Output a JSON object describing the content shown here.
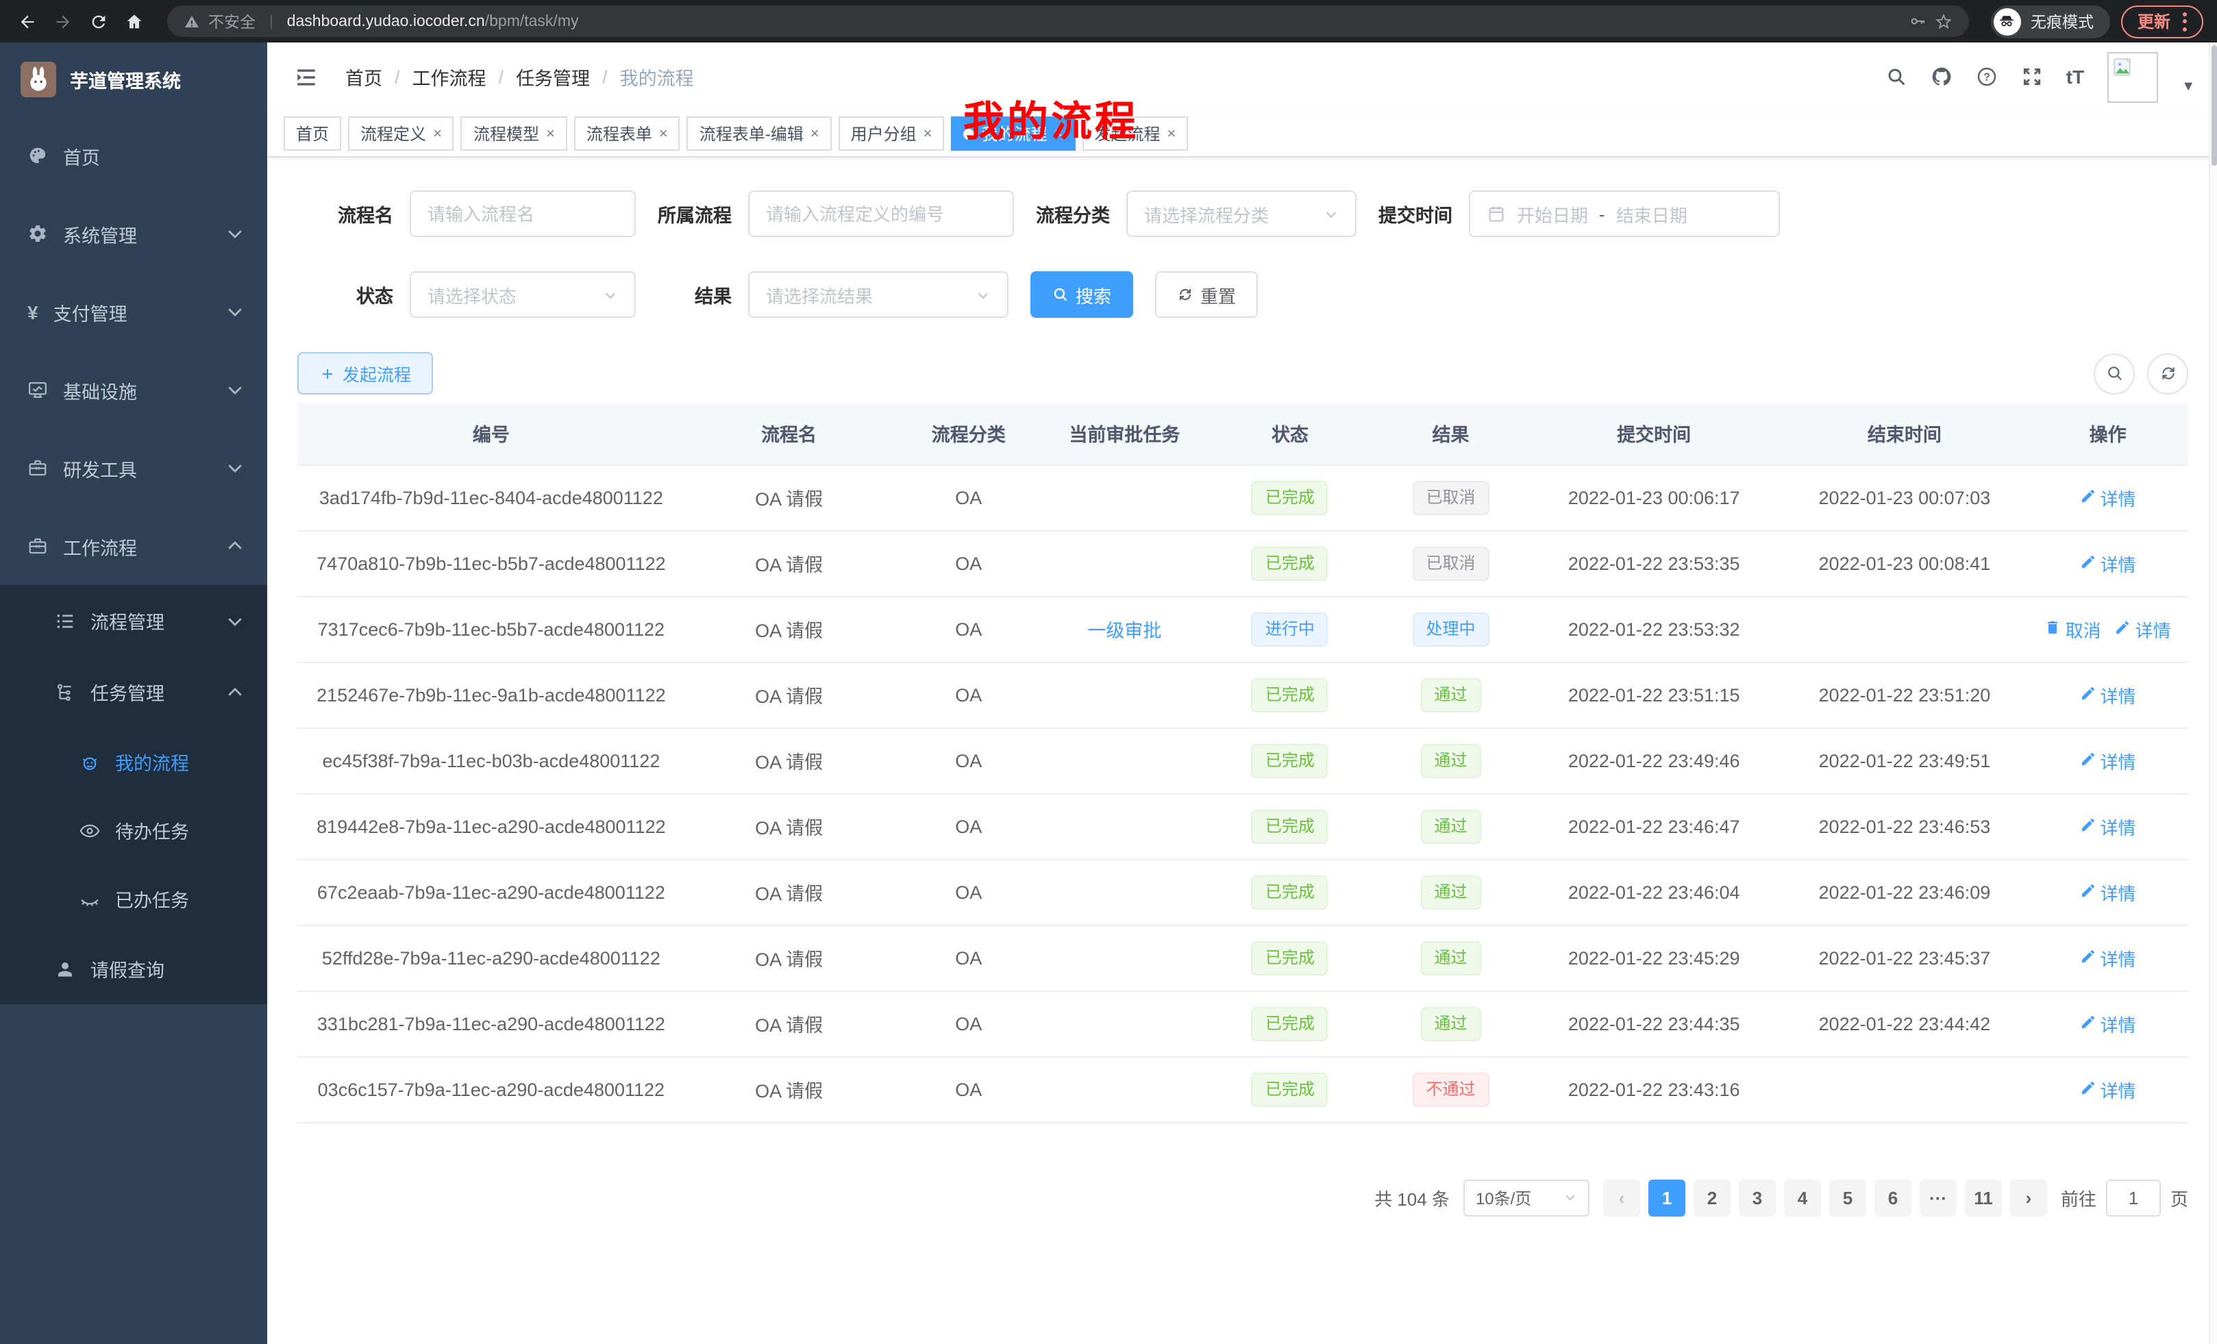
{
  "colors": {
    "accent": "#409eff",
    "sidebar_bg": "#304156",
    "submenu_bg": "#1f2d3d",
    "chrome_bg": "#202124",
    "success": "#67c23a",
    "info": "#909399",
    "danger": "#f56c6c",
    "annotation_red": "#ff0000"
  },
  "browser": {
    "security_label": "不安全",
    "address_divider": "|",
    "url_host": "dashboard.yudao.iocoder.cn",
    "url_path": "/bpm/task/my",
    "incognito_label": "无痕模式",
    "update_label": "更新"
  },
  "sidebar": {
    "app_title": "芋道管理系统",
    "menu": [
      {
        "label": "首页",
        "icon": "dashboard-icon"
      },
      {
        "label": "系统管理",
        "icon": "gear-icon",
        "chevron": "down"
      },
      {
        "label": "支付管理",
        "icon": "yen-icon",
        "chevron": "down"
      },
      {
        "label": "基础设施",
        "icon": "monitor-icon",
        "chevron": "down"
      },
      {
        "label": "研发工具",
        "icon": "toolbox-icon",
        "chevron": "down"
      },
      {
        "label": "工作流程",
        "icon": "briefcase-icon",
        "chevron": "up",
        "children": [
          {
            "label": "流程管理",
            "icon": "list-icon",
            "chevron": "down"
          },
          {
            "label": "任务管理",
            "icon": "flow-icon",
            "chevron": "up",
            "children": [
              {
                "label": "我的流程",
                "icon": "robot-icon",
                "active": true
              },
              {
                "label": "待办任务",
                "icon": "eye-icon"
              },
              {
                "label": "已办任务",
                "icon": "eye-closed-icon"
              }
            ]
          },
          {
            "label": "请假查询",
            "icon": "user-icon"
          }
        ]
      }
    ]
  },
  "header": {
    "breadcrumb": [
      "首页",
      "工作流程",
      "任务管理",
      "我的流程"
    ],
    "breadcrumb_separator": "/",
    "annotation": "我的流程"
  },
  "tabs": [
    {
      "label": "首页"
    },
    {
      "label": "流程定义",
      "closable": true
    },
    {
      "label": "流程模型",
      "closable": true
    },
    {
      "label": "流程表单",
      "closable": true
    },
    {
      "label": "流程表单-编辑",
      "closable": true
    },
    {
      "label": "用户分组",
      "closable": true
    },
    {
      "label": "我的流程",
      "closable": true,
      "active": true
    },
    {
      "label": "发起流程",
      "closable": true
    }
  ],
  "filters": {
    "name": {
      "label": "流程名",
      "placeholder": "请输入流程名"
    },
    "definition": {
      "label": "所属流程",
      "placeholder": "请输入流程定义的编号"
    },
    "category": {
      "label": "流程分类",
      "placeholder": "请选择流程分类"
    },
    "submit_time": {
      "label": "提交时间",
      "start_placeholder": "开始日期",
      "separator": "-",
      "end_placeholder": "结束日期"
    },
    "status": {
      "label": "状态",
      "placeholder": "请选择状态"
    },
    "result": {
      "label": "结果",
      "placeholder": "请选择流结果"
    },
    "search_label": "搜索",
    "reset_label": "重置"
  },
  "toolbar": {
    "create_label": "发起流程"
  },
  "table": {
    "columns": [
      "编号",
      "流程名",
      "流程分类",
      "当前审批任务",
      "状态",
      "结果",
      "提交时间",
      "结束时间",
      "操作"
    ],
    "rows": [
      {
        "id": "3ad174fb-7b9d-11ec-8404-acde48001122",
        "name": "OA 请假",
        "category": "OA",
        "task": "",
        "status": {
          "text": "已完成",
          "type": "success"
        },
        "result": {
          "text": "已取消",
          "type": "info"
        },
        "submit_time": "2022-01-23 00:06:17",
        "end_time": "2022-01-23 00:07:03",
        "ops": [
          {
            "label": "详情",
            "icon": "pen-icon"
          }
        ]
      },
      {
        "id": "7470a810-7b9b-11ec-b5b7-acde48001122",
        "name": "OA 请假",
        "category": "OA",
        "task": "",
        "status": {
          "text": "已完成",
          "type": "success"
        },
        "result": {
          "text": "已取消",
          "type": "info"
        },
        "submit_time": "2022-01-22 23:53:35",
        "end_time": "2022-01-23 00:08:41",
        "ops": [
          {
            "label": "详情",
            "icon": "pen-icon"
          }
        ]
      },
      {
        "id": "7317cec6-7b9b-11ec-b5b7-acde48001122",
        "name": "OA 请假",
        "category": "OA",
        "task": "一级审批",
        "status": {
          "text": "进行中",
          "type": "primary"
        },
        "result": {
          "text": "处理中",
          "type": "primary"
        },
        "submit_time": "2022-01-22 23:53:32",
        "end_time": "",
        "ops": [
          {
            "label": "取消",
            "icon": "trash-icon"
          },
          {
            "label": "详情",
            "icon": "pen-icon"
          }
        ]
      },
      {
        "id": "2152467e-7b9b-11ec-9a1b-acde48001122",
        "name": "OA 请假",
        "category": "OA",
        "task": "",
        "status": {
          "text": "已完成",
          "type": "success"
        },
        "result": {
          "text": "通过",
          "type": "success"
        },
        "submit_time": "2022-01-22 23:51:15",
        "end_time": "2022-01-22 23:51:20",
        "ops": [
          {
            "label": "详情",
            "icon": "pen-icon"
          }
        ]
      },
      {
        "id": "ec45f38f-7b9a-11ec-b03b-acde48001122",
        "name": "OA 请假",
        "category": "OA",
        "task": "",
        "status": {
          "text": "已完成",
          "type": "success"
        },
        "result": {
          "text": "通过",
          "type": "success"
        },
        "submit_time": "2022-01-22 23:49:46",
        "end_time": "2022-01-22 23:49:51",
        "ops": [
          {
            "label": "详情",
            "icon": "pen-icon"
          }
        ]
      },
      {
        "id": "819442e8-7b9a-11ec-a290-acde48001122",
        "name": "OA 请假",
        "category": "OA",
        "task": "",
        "status": {
          "text": "已完成",
          "type": "success"
        },
        "result": {
          "text": "通过",
          "type": "success"
        },
        "submit_time": "2022-01-22 23:46:47",
        "end_time": "2022-01-22 23:46:53",
        "ops": [
          {
            "label": "详情",
            "icon": "pen-icon"
          }
        ]
      },
      {
        "id": "67c2eaab-7b9a-11ec-a290-acde48001122",
        "name": "OA 请假",
        "category": "OA",
        "task": "",
        "status": {
          "text": "已完成",
          "type": "success"
        },
        "result": {
          "text": "通过",
          "type": "success"
        },
        "submit_time": "2022-01-22 23:46:04",
        "end_time": "2022-01-22 23:46:09",
        "ops": [
          {
            "label": "详情",
            "icon": "pen-icon"
          }
        ]
      },
      {
        "id": "52ffd28e-7b9a-11ec-a290-acde48001122",
        "name": "OA 请假",
        "category": "OA",
        "task": "",
        "status": {
          "text": "已完成",
          "type": "success"
        },
        "result": {
          "text": "通过",
          "type": "success"
        },
        "submit_time": "2022-01-22 23:45:29",
        "end_time": "2022-01-22 23:45:37",
        "ops": [
          {
            "label": "详情",
            "icon": "pen-icon"
          }
        ]
      },
      {
        "id": "331bc281-7b9a-11ec-a290-acde48001122",
        "name": "OA 请假",
        "category": "OA",
        "task": "",
        "status": {
          "text": "已完成",
          "type": "success"
        },
        "result": {
          "text": "通过",
          "type": "success"
        },
        "submit_time": "2022-01-22 23:44:35",
        "end_time": "2022-01-22 23:44:42",
        "ops": [
          {
            "label": "详情",
            "icon": "pen-icon"
          }
        ]
      },
      {
        "id": "03c6c157-7b9a-11ec-a290-acde48001122",
        "name": "OA 请假",
        "category": "OA",
        "task": "",
        "status": {
          "text": "已完成",
          "type": "success"
        },
        "result": {
          "text": "不通过",
          "type": "danger"
        },
        "submit_time": "2022-01-22 23:43:16",
        "end_time": "",
        "ops": [
          {
            "label": "详情",
            "icon": "pen-icon"
          }
        ]
      }
    ]
  },
  "pagination": {
    "total_label": "共 104 条",
    "page_size": "10条/页",
    "pages": [
      "1",
      "2",
      "3",
      "4",
      "5",
      "6",
      "···",
      "11"
    ],
    "active_page": "1",
    "prev_enabled": false,
    "goto_label": "前往",
    "goto_value": "1",
    "goto_suffix": "页"
  }
}
